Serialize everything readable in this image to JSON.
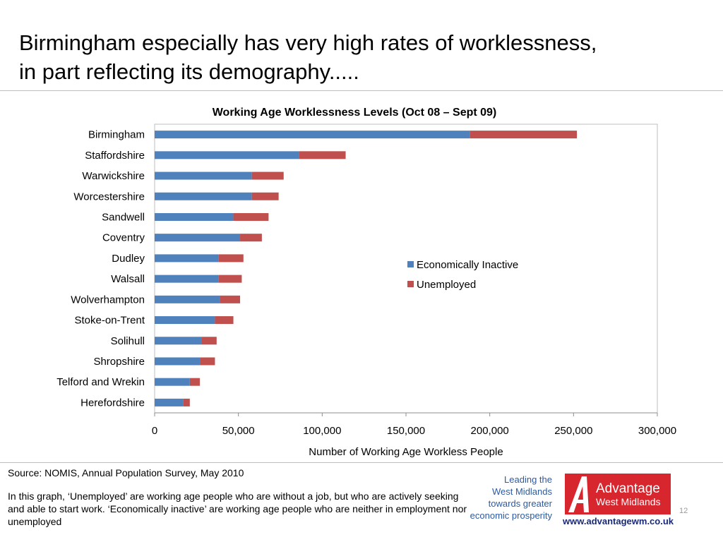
{
  "slide": {
    "title_line1": "Birmingham especially has very high rates of worklessness,",
    "title_line2": "in part reflecting its demography.....",
    "source": "Source: NOMIS, Annual Population Survey, May 2010",
    "note": "In this graph, ‘Unemployed’  are working age  people who are without a job, but who are actively seeking and able to start work. ‘Economically inactive’ are working age people who are neither in employment nor unemployed",
    "page_number": "12"
  },
  "branding": {
    "tagline": [
      "Leading the",
      "West Midlands",
      "towards greater",
      "economic prosperity"
    ],
    "logo_line1": "Advantage",
    "logo_line2": "West Midlands",
    "url": "www.advantagewm.co.uk"
  },
  "colors": {
    "economically_inactive": "#4f81bd",
    "unemployed": "#c0504d",
    "logo_red": "#d7262e",
    "brand_blue": "#2d5aa0"
  },
  "chart_data": {
    "type": "bar",
    "orientation": "horizontal",
    "stacked": true,
    "title": "Working Age Worklessness Levels (Oct 08 – Sept 09)",
    "xlabel": "Number of Working Age Workless People",
    "ylabel": "",
    "xlim": [
      0,
      300000
    ],
    "x_ticks": [
      0,
      50000,
      100000,
      150000,
      200000,
      250000,
      300000
    ],
    "x_tick_labels": [
      "0",
      "50,000",
      "100,000",
      "150,000",
      "200,000",
      "250,000",
      "300,000"
    ],
    "grid": false,
    "legend_position": "right",
    "categories": [
      "Birmingham",
      "Staffordshire",
      "Warwickshire",
      "Worcestershire",
      "Sandwell",
      "Coventry",
      "Dudley",
      "Walsall",
      "Wolverhampton",
      "Stoke-on-Trent",
      "Solihull",
      "Shropshire",
      "Telford and Wrekin",
      "Herefordshire"
    ],
    "series": [
      {
        "name": "Economically Inactive",
        "color": "#4f81bd",
        "values": [
          188000,
          86000,
          58000,
          58000,
          47000,
          51000,
          38000,
          38000,
          39000,
          36000,
          28000,
          27000,
          21000,
          17000
        ]
      },
      {
        "name": "Unemployed",
        "color": "#c0504d",
        "values": [
          64000,
          28000,
          19000,
          16000,
          21000,
          13000,
          15000,
          14000,
          12000,
          11000,
          9000,
          9000,
          6000,
          4000
        ]
      }
    ]
  }
}
